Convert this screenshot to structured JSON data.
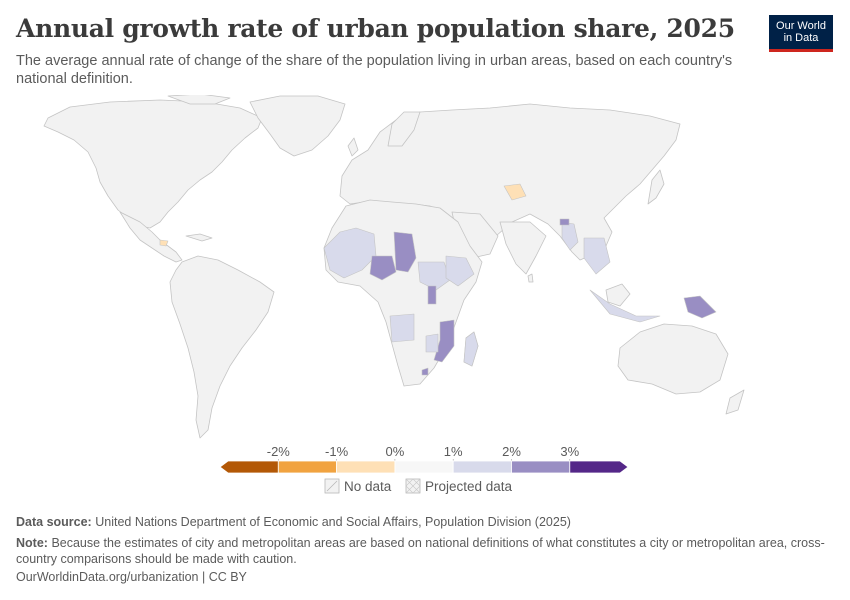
{
  "header": {
    "title": "Annual growth rate of urban population share, 2025",
    "subtitle": "The average annual rate of change of the share of the population living in urban areas, based on each country's national definition.",
    "logo_line1": "Our World",
    "logo_line2": "in Data"
  },
  "legend": {
    "ticks": [
      "-2%",
      "-1%",
      "0%",
      "1%",
      "2%",
      "3%"
    ],
    "bin_colors": [
      "#b35806",
      "#f1a340",
      "#fee0b6",
      "#f7f7f7",
      "#d8daeb",
      "#998ec3",
      "#542788"
    ],
    "no_data_label": "No data",
    "projected_label": "Projected data"
  },
  "colors": {
    "no_data_fill": "#f2f2f2",
    "border": "#c4c4c4"
  },
  "footer": {
    "source_label": "Data source:",
    "source_text": "United Nations Department of Economic and Social Affairs, Population Division (2025)",
    "note_label": "Note:",
    "note_text": "Because the estimates of city and metropolitan areas are based on national definitions of what constitutes a city or metropolitan area, cross-country comparisons should be made with caution.",
    "citation": "OurWorldinData.org/urbanization | CC BY"
  }
}
